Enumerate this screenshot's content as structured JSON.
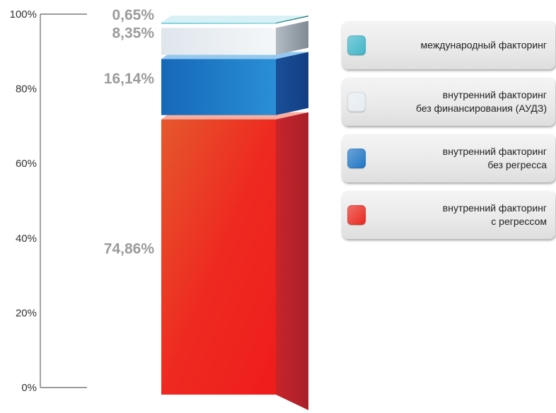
{
  "chart_data": {
    "type": "bar",
    "stacked": true,
    "ylim": [
      0,
      100
    ],
    "y_ticks": [
      "0%",
      "20%",
      "40%",
      "60%",
      "80%",
      "100%"
    ],
    "grid": false,
    "legend_position": "right",
    "series": [
      {
        "name": "внутренний факторинг\nс регрессом",
        "value": 74.86,
        "label": "74,86%",
        "color": "#e8281e"
      },
      {
        "name": "внутренний факторинг\nбез регресса",
        "value": 16.14,
        "label": "16,14%",
        "color": "#1f76c4"
      },
      {
        "name": "внутренний факторинг\nбез финансирования (АУДЗ)",
        "value": 8.35,
        "label": "8,35%",
        "color": "#e6ecf1"
      },
      {
        "name": "международный факторинг",
        "value": 0.65,
        "label": "0,65%",
        "color": "#3fb6c9"
      }
    ]
  }
}
